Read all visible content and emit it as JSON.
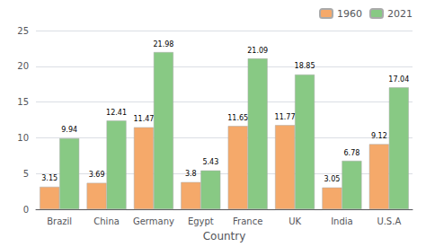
{
  "chart_data": {
    "type": "bar",
    "xlabel": "Country",
    "categories": [
      "Brazil",
      "China",
      "Germany",
      "Egypt",
      "France",
      "UK",
      "India",
      "U.S.A"
    ],
    "series": [
      {
        "name": "1960",
        "color": "#F5A96A",
        "values": [
          3.15,
          3.69,
          11.47,
          3.8,
          11.65,
          11.77,
          3.05,
          9.12
        ]
      },
      {
        "name": "2021",
        "color": "#88C984",
        "values": [
          9.94,
          12.41,
          21.98,
          5.43,
          21.09,
          18.85,
          6.78,
          17.04
        ]
      }
    ],
    "ylim": [
      0,
      25
    ],
    "yticks": [
      0,
      5,
      10,
      15,
      20,
      25
    ],
    "grid": true,
    "legend": "upper right",
    "data_labels": true
  }
}
